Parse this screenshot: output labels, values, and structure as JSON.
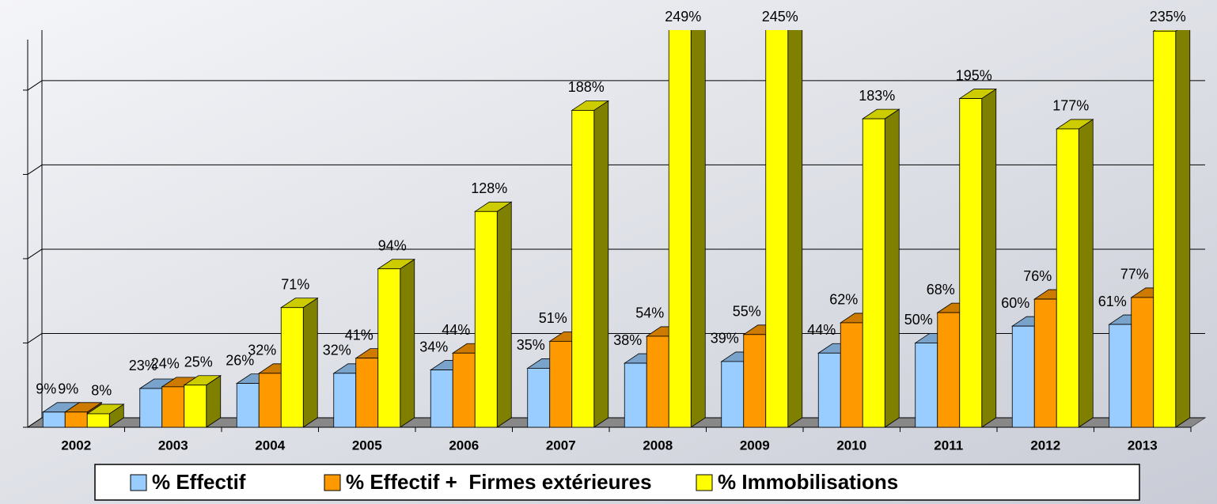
{
  "chart_data": {
    "type": "bar3d",
    "categories": [
      "2002",
      "2003",
      "2004",
      "2005",
      "2006",
      "2007",
      "2008",
      "2009",
      "2010",
      "2011",
      "2012",
      "2013"
    ],
    "series": [
      {
        "name": "% Effectif",
        "color": "#99ccff",
        "values": [
          9,
          23,
          26,
          32,
          34,
          35,
          38,
          39,
          44,
          50,
          60,
          61
        ],
        "value_labels": [
          "9%",
          "23%",
          "26%",
          "32%",
          "34%",
          "35%",
          "38%",
          "39%",
          "44%",
          "50%",
          "60%",
          "61%"
        ]
      },
      {
        "name": "% Effectif +  Firmes extérieures",
        "color": "#ff9900",
        "values": [
          9,
          24,
          32,
          41,
          44,
          51,
          54,
          55,
          62,
          68,
          76,
          77
        ],
        "value_labels": [
          "9%",
          "24%",
          "32%",
          "41%",
          "44%",
          "51%",
          "54%",
          "55%",
          "62%",
          "68%",
          "76%",
          "77%"
        ]
      },
      {
        "name": "% Immobilisations",
        "color": "#ffff00",
        "values": [
          8,
          25,
          71,
          94,
          128,
          188,
          249,
          245,
          183,
          195,
          177,
          235
        ],
        "value_labels": [
          "8%",
          "25%",
          "71%",
          "94%",
          "128%",
          "188%",
          "249%",
          "245%",
          "183%",
          "195%",
          "177%",
          "235%"
        ]
      }
    ],
    "ylim": [
      0,
      230
    ],
    "yticks": [
      0,
      50,
      100,
      150,
      200
    ],
    "grid": true,
    "legend": "bottom"
  }
}
